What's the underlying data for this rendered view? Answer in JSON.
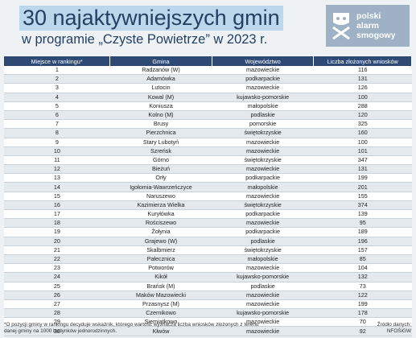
{
  "header": {
    "title": "30 najaktywniejszych gmin",
    "subtitle": "w programie „Czyste Powietrze” w 2023 r.",
    "logo": [
      "polski",
      "alarm",
      "smogowy"
    ]
  },
  "table": {
    "columns": [
      "Miejsce w rankingu*",
      "Gmina",
      "Województwo",
      "Liczba złożonych wniosków"
    ],
    "rows": [
      [
        1,
        "Radzanów (W)",
        "mazowieckie",
        116
      ],
      [
        2,
        "Adamówka",
        "podkarpackie",
        131
      ],
      [
        3,
        "Lutocin",
        "mazowieckie",
        126
      ],
      [
        4,
        "Kowal (M)",
        "kujawsko-pomorskie",
        100
      ],
      [
        5,
        "Koniusza",
        "małopolskie",
        288
      ],
      [
        6,
        "Kolno (M)",
        "podlaskie",
        120
      ],
      [
        7,
        "Brusy",
        "pomorskie",
        325
      ],
      [
        8,
        "Pierzchnica",
        "świętokrzyskie",
        160
      ],
      [
        9,
        "Stary Lubotyń",
        "mazowieckie",
        100
      ],
      [
        10,
        "Szreńsk",
        "mazowieckie",
        101
      ],
      [
        11,
        "Górno",
        "świętokrzyskie",
        347
      ],
      [
        12,
        "Bieżuń",
        "mazowieckie",
        131
      ],
      [
        13,
        "Orły",
        "podkarpackie",
        199
      ],
      [
        14,
        "Igołomia-Wawrzeńczyce",
        "małopolskie",
        201
      ],
      [
        15,
        "Naruszewo",
        "mazowieckie",
        155
      ],
      [
        16,
        "Kazimierza Wielka",
        "świętokrzyskie",
        374
      ],
      [
        17,
        "Kuryłówka",
        "podkarpackie",
        139
      ],
      [
        18,
        "Rościszewo",
        "mazowieckie",
        95
      ],
      [
        19,
        "Żołynia",
        "podkarpackie",
        189
      ],
      [
        20,
        "Grajewo (W)",
        "podlaskie",
        196
      ],
      [
        21,
        "Skalbmierz",
        "świętokrzyskie",
        157
      ],
      [
        22,
        "Pałecznica",
        "małopolskie",
        85
      ],
      [
        23,
        "Potworów",
        "mazowieckie",
        104
      ],
      [
        24,
        "Kikół",
        "kujawsko-pomorskie",
        132
      ],
      [
        25,
        "Brańsk (M)",
        "podlaskie",
        73
      ],
      [
        26,
        "Maków Mazowiecki",
        "mazowieckie",
        122
      ],
      [
        27,
        "Przasnysz (M)",
        "mazowieckie",
        199
      ],
      [
        28,
        "Czernikowo",
        "kujawsko-pomorskie",
        178
      ],
      [
        29,
        "Siemiątkowo",
        "mazowieckie",
        70
      ],
      [
        30,
        "Kłwów",
        "mazowieckie",
        92
      ]
    ]
  },
  "footer": {
    "note": "*O pozycji gminy w rankingu decyduje wskaźnik, którego wartość wyznacza liczba wniosków złożonych z terenu danej gminy na 1000 budynków jednorodzinnych.",
    "source": [
      "Źródło danych:",
      "NFOŚiGW"
    ]
  }
}
